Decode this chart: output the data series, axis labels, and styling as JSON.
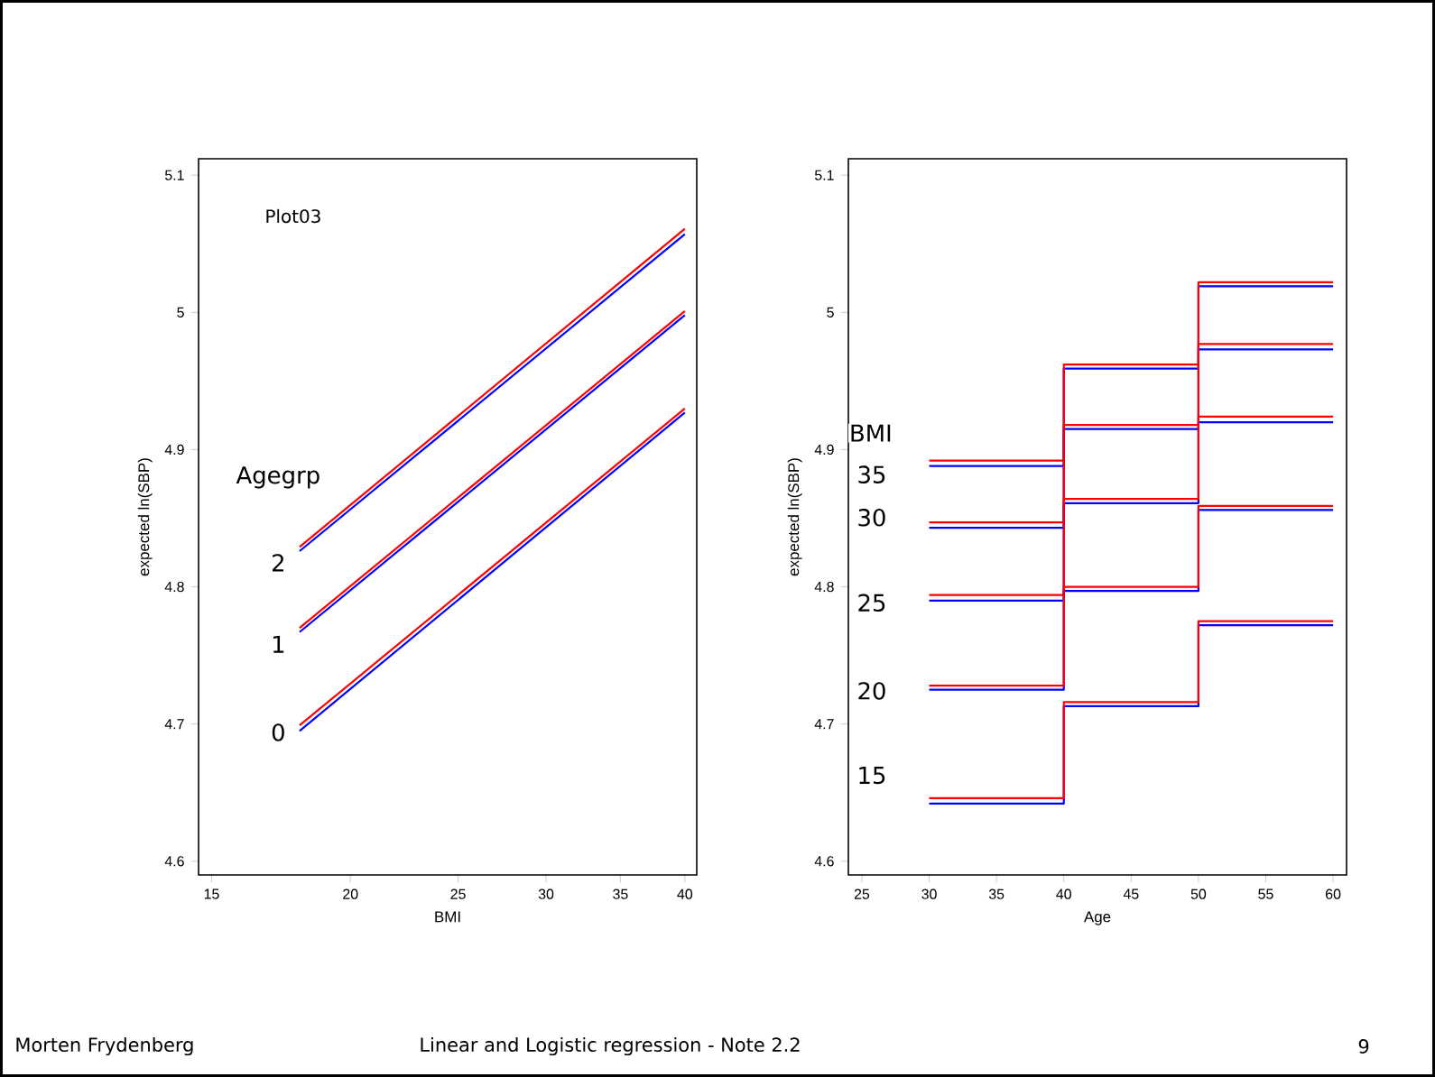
{
  "chart_data": [
    {
      "type": "line",
      "xlabel": "BMI",
      "ylabel": "expected ln(SBP)",
      "log": "x",
      "xlim": [
        14.6,
        41
      ],
      "xticks": [
        15,
        20,
        25,
        30,
        35,
        40
      ],
      "ylim": [
        4.59,
        5.112
      ],
      "yticks": [
        4.6,
        4.7,
        4.8,
        4.9,
        5,
        5.1
      ],
      "series": [
        {
          "color": "#0000ff",
          "x": [
            18,
            40
          ],
          "values": [
            4.695,
            4.927
          ]
        },
        {
          "color": "#ff0000",
          "x": [
            18,
            40
          ],
          "values": [
            4.699,
            4.93
          ]
        },
        {
          "color": "#0000ff",
          "x": [
            18,
            40
          ],
          "values": [
            4.767,
            4.998
          ]
        },
        {
          "color": "#ff0000",
          "x": [
            18,
            40
          ],
          "values": [
            4.77,
            5.001
          ]
        },
        {
          "color": "#0000ff",
          "x": [
            18,
            40
          ],
          "values": [
            4.826,
            5.057
          ]
        },
        {
          "color": "#ff0000",
          "x": [
            18,
            40
          ],
          "values": [
            4.829,
            5.061
          ]
        }
      ],
      "annotations": [
        "Plot03",
        "Agegrp",
        "2",
        "1",
        "0"
      ]
    },
    {
      "type": "step",
      "xlabel": "Age",
      "ylabel": "expected ln(SBP)",
      "xlim": [
        24,
        61
      ],
      "xticks": [
        25,
        30,
        35,
        40,
        45,
        50,
        55,
        60
      ],
      "ylim": [
        4.59,
        5.112
      ],
      "yticks": [
        4.6,
        4.7,
        4.8,
        4.9,
        5,
        5.1
      ],
      "series": [
        {
          "color": "#0000ff",
          "x": [
            30,
            40,
            50,
            60
          ],
          "values": [
            4.888,
            4.959,
            5.019,
            5.019
          ]
        },
        {
          "color": "#ff0000",
          "x": [
            30,
            40,
            50,
            60
          ],
          "values": [
            4.892,
            4.962,
            5.022,
            5.022
          ]
        },
        {
          "color": "#0000ff",
          "x": [
            30,
            40,
            50,
            60
          ],
          "values": [
            4.843,
            4.915,
            4.973,
            4.973
          ]
        },
        {
          "color": "#ff0000",
          "x": [
            30,
            40,
            50,
            60
          ],
          "values": [
            4.847,
            4.918,
            4.977,
            4.977
          ]
        },
        {
          "color": "#0000ff",
          "x": [
            30,
            40,
            50,
            60
          ],
          "values": [
            4.79,
            4.861,
            4.92,
            4.92
          ]
        },
        {
          "color": "#ff0000",
          "x": [
            30,
            40,
            50,
            60
          ],
          "values": [
            4.794,
            4.864,
            4.924,
            4.924
          ]
        },
        {
          "color": "#0000ff",
          "x": [
            30,
            40,
            50,
            60
          ],
          "values": [
            4.725,
            4.797,
            4.856,
            4.856
          ]
        },
        {
          "color": "#ff0000",
          "x": [
            30,
            40,
            50,
            60
          ],
          "values": [
            4.728,
            4.8,
            4.859,
            4.859
          ]
        },
        {
          "color": "#0000ff",
          "x": [
            30,
            40,
            50,
            60
          ],
          "values": [
            4.642,
            4.713,
            4.772,
            4.772
          ]
        },
        {
          "color": "#ff0000",
          "x": [
            30,
            40,
            50,
            60
          ],
          "values": [
            4.646,
            4.716,
            4.775,
            4.775
          ]
        }
      ],
      "annotations": [
        "BMI",
        "35",
        "30",
        "25",
        "20",
        "15"
      ]
    },
    {
      "type": "other",
      "annotations": [
        "Morten Frydenberg",
        "Linear and Logistic regression - Note 2.2",
        "9"
      ]
    }
  ]
}
